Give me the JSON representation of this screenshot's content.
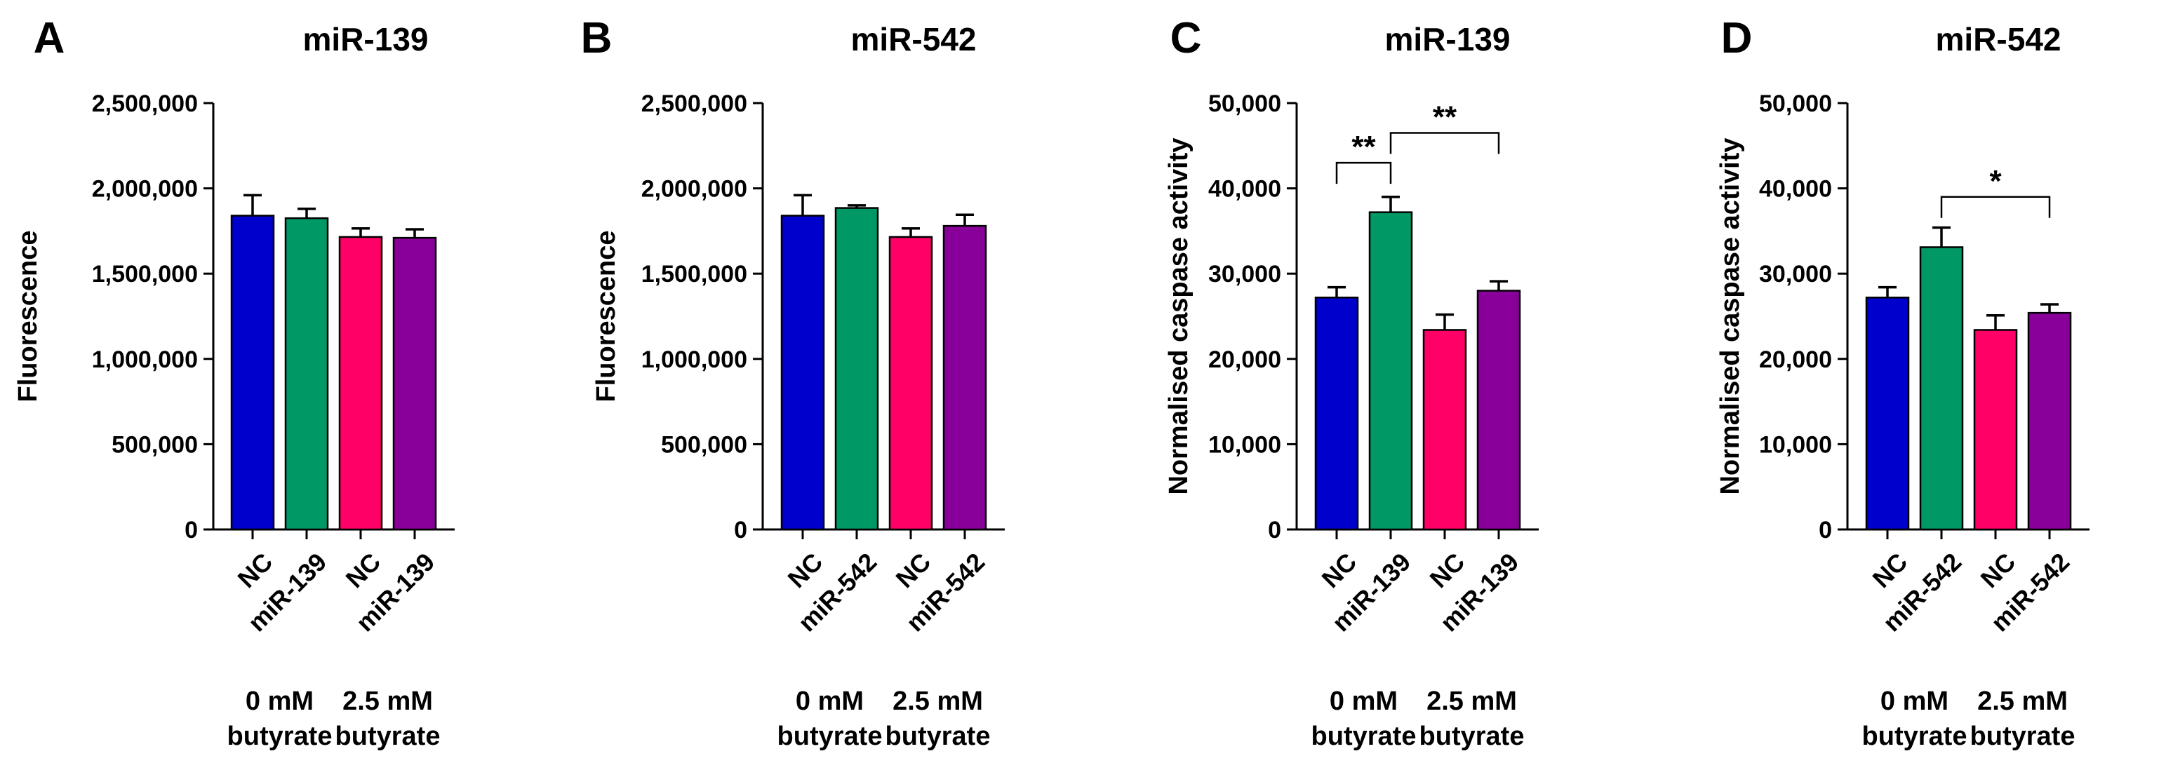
{
  "colors": {
    "nc": "#0000cc",
    "mir_low": "#009966",
    "nc_high": "#ff0066",
    "mir_high": "#880099"
  },
  "chart_data": [
    {
      "panel": "A",
      "type": "bar",
      "title": "miR-139",
      "ylabel": "Fluorescence",
      "xlabel": "",
      "ylim": [
        0,
        2500000
      ],
      "yticks": [
        0,
        500000,
        1000000,
        1500000,
        2000000,
        2500000
      ],
      "ytick_labels": [
        "0",
        "500,000",
        "1,000,000",
        "1,500,000",
        "2,000,000",
        "2,500,000"
      ],
      "categories": [
        "NC",
        "miR-139",
        "NC",
        "miR-139"
      ],
      "values": [
        1840000,
        1825000,
        1715000,
        1710000
      ],
      "errors": [
        120000,
        55000,
        50000,
        50000
      ],
      "groups": [
        {
          "line1": "0 mM",
          "line2": "butyrate"
        },
        {
          "line1": "2.5 mM",
          "line2": "butyrate"
        }
      ],
      "significance": []
    },
    {
      "panel": "B",
      "type": "bar",
      "title": "miR-542",
      "ylabel": "Fluorescence",
      "xlabel": "",
      "ylim": [
        0,
        2500000
      ],
      "yticks": [
        0,
        500000,
        1000000,
        1500000,
        2000000,
        2500000
      ],
      "ytick_labels": [
        "0",
        "500,000",
        "1,000,000",
        "1,500,000",
        "2,000,000",
        "2,500,000"
      ],
      "categories": [
        "NC",
        "miR-542",
        "NC",
        "miR-542"
      ],
      "values": [
        1840000,
        1885000,
        1715000,
        1780000
      ],
      "errors": [
        120000,
        15000,
        50000,
        65000
      ],
      "groups": [
        {
          "line1": "0 mM",
          "line2": "butyrate"
        },
        {
          "line1": "2.5 mM",
          "line2": "butyrate"
        }
      ],
      "significance": []
    },
    {
      "panel": "C",
      "type": "bar",
      "title": "miR-139",
      "ylabel": "Normalised caspase activity",
      "xlabel": "",
      "ylim": [
        0,
        50000
      ],
      "yticks": [
        0,
        10000,
        20000,
        30000,
        40000,
        50000
      ],
      "ytick_labels": [
        "0",
        "10,000",
        "20,000",
        "30,000",
        "40,000",
        "50,000"
      ],
      "categories": [
        "NC",
        "miR-139",
        "NC",
        "miR-139"
      ],
      "values": [
        27200,
        37200,
        23400,
        28000
      ],
      "errors": [
        1200,
        1800,
        1800,
        1100
      ],
      "groups": [
        {
          "line1": "0 mM",
          "line2": "butyrate"
        },
        {
          "line1": "2.5 mM",
          "line2": "butyrate"
        }
      ],
      "significance": [
        {
          "from": 0,
          "to": 1,
          "label": "**",
          "y": 43000
        },
        {
          "from": 1,
          "to": 3,
          "label": "**",
          "y": 46500
        }
      ]
    },
    {
      "panel": "D",
      "type": "bar",
      "title": "miR-542",
      "ylabel": "Normalised caspase activity",
      "xlabel": "",
      "ylim": [
        0,
        50000
      ],
      "yticks": [
        0,
        10000,
        20000,
        30000,
        40000,
        50000
      ],
      "ytick_labels": [
        "0",
        "10,000",
        "20,000",
        "30,000",
        "40,000",
        "50,000"
      ],
      "categories": [
        "NC",
        "miR-542",
        "NC",
        "miR-542"
      ],
      "values": [
        27200,
        33100,
        23400,
        25400
      ],
      "errors": [
        1200,
        2300,
        1700,
        1000
      ],
      "groups": [
        {
          "line1": "0 mM",
          "line2": "butyrate"
        },
        {
          "line1": "2.5 mM",
          "line2": "butyrate"
        }
      ],
      "significance": [
        {
          "from": 1,
          "to": 3,
          "label": "*",
          "y": 39000
        }
      ]
    }
  ]
}
